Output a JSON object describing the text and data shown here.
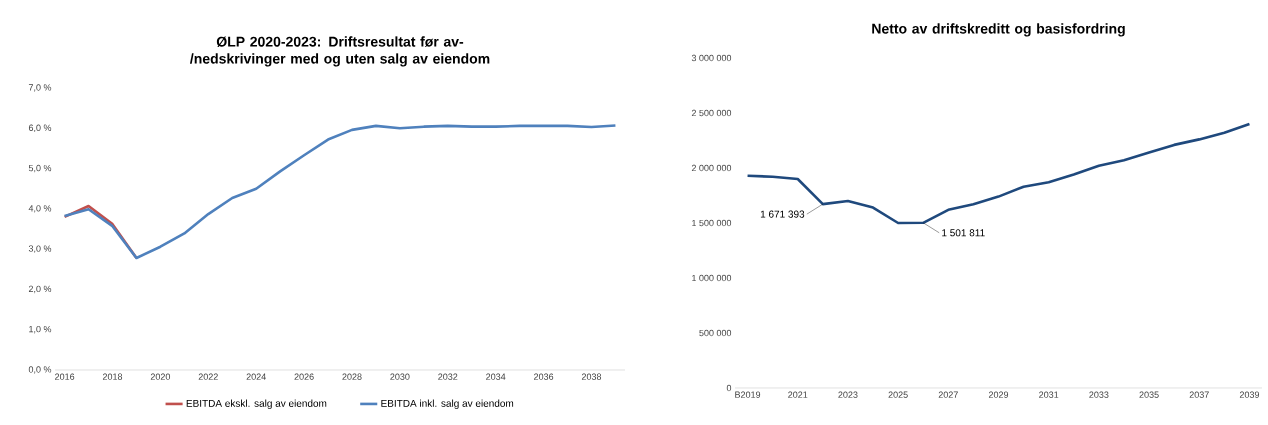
{
  "chart_data": [
    {
      "type": "line",
      "title": "ØLP 2020-2023: Driftsresultat før av-/nedskrivinger med og uten salg av eiendom",
      "x": [
        2016,
        2017,
        2018,
        2019,
        2020,
        2021,
        2022,
        2023,
        2024,
        2025,
        2026,
        2027,
        2028,
        2029,
        2030,
        2031,
        2032,
        2033,
        2034,
        2035,
        2036,
        2037,
        2038,
        2039
      ],
      "series": [
        {
          "name": "EBITDA ekskl. salg av eiendom",
          "color": "#c0504d",
          "values": [
            3.8,
            4.07,
            3.62,
            2.78,
            null,
            null,
            null,
            null,
            null,
            null,
            null,
            null,
            null,
            null,
            null,
            null,
            null,
            null,
            null,
            null,
            null,
            null,
            null,
            null
          ]
        },
        {
          "name": "EBITDA inkl. salg av eiendom",
          "color": "#4f81bd",
          "values": [
            3.82,
            3.99,
            3.57,
            2.78,
            3.06,
            3.39,
            3.87,
            4.27,
            4.5,
            4.93,
            5.33,
            5.72,
            5.96,
            6.06,
            6.0,
            6.04,
            6.06,
            6.04,
            6.04,
            6.06,
            6.06,
            6.06,
            6.03,
            6.07
          ]
        }
      ],
      "xlim": [
        2015.6,
        2039.4
      ],
      "ylim": [
        0,
        7
      ],
      "xticks": [
        2016,
        2018,
        2020,
        2022,
        2024,
        2026,
        2028,
        2030,
        2032,
        2034,
        2036,
        2038
      ],
      "yticks": [
        {
          "value": 0,
          "label": "0,0 %"
        },
        {
          "value": 1,
          "label": "1,0 %"
        },
        {
          "value": 2,
          "label": "2,0 %"
        },
        {
          "value": 3,
          "label": "3,0 %"
        },
        {
          "value": 4,
          "label": "4,0 %"
        },
        {
          "value": 5,
          "label": "5,0 %"
        },
        {
          "value": 6,
          "label": "6,0 %"
        },
        {
          "value": 7,
          "label": "7,0 %"
        }
      ],
      "legend": "bottom"
    },
    {
      "type": "line",
      "title": "Netto av driftskreditt og basisfordring",
      "categories": [
        "B2019",
        null,
        "2021",
        null,
        "2023",
        null,
        "2025",
        null,
        "2027",
        null,
        "2029",
        null,
        "2031",
        null,
        "2033",
        null,
        "2035",
        null,
        "2037",
        null,
        "2039"
      ],
      "series": [
        {
          "color": "#1f497d",
          "values": [
            1930000,
            1920000,
            1900000,
            1671393,
            1700000,
            1640000,
            1500000,
            1501811,
            1620000,
            1670000,
            1740000,
            1830000,
            1870000,
            1940000,
            2020000,
            2070000,
            2140000,
            2210000,
            2260000,
            2320000,
            2400000
          ],
          "value_labels": [
            null,
            null,
            null,
            "1 671 393",
            null,
            null,
            null,
            "1 501 811",
            null,
            null,
            null,
            null,
            null,
            null,
            null,
            null,
            null,
            null,
            null,
            null,
            null
          ]
        }
      ],
      "ylim": [
        0,
        3000000
      ],
      "yticks": [
        {
          "value": 0,
          "label": "0"
        },
        {
          "value": 500000,
          "label": "500 000"
        },
        {
          "value": 1000000,
          "label": "1 000 000"
        },
        {
          "value": 1500000,
          "label": "1 500 000"
        },
        {
          "value": 2000000,
          "label": "2 000 000"
        },
        {
          "value": 2500000,
          "label": "2 500 000"
        },
        {
          "value": 3000000,
          "label": "3 000 000"
        }
      ]
    }
  ]
}
